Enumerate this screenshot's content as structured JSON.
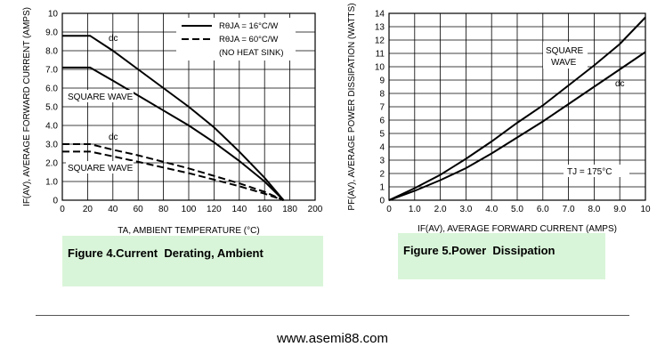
{
  "chart_data": [
    {
      "type": "line",
      "figure_caption": "Figure 4.Current  Derating, Ambient",
      "xlabel": "TA, AMBIENT TEMPERATURE (°C)",
      "ylabel": "IF(AV), AVERAGE FORWARD CURRENT (AMPS)",
      "xlim": [
        0,
        200
      ],
      "ylim": [
        0,
        10
      ],
      "xticks": [
        "0",
        "20",
        "40",
        "60",
        "80",
        "100",
        "120",
        "140",
        "160",
        "180",
        "200"
      ],
      "yticks": [
        "0",
        "1.0",
        "2.0",
        "3.0",
        "4.0",
        "5.0",
        "6.0",
        "7.0",
        "8.0",
        "9.0",
        "10"
      ],
      "grid": true,
      "legend": {
        "placement": "top-right",
        "entries": [
          {
            "text": "RθJA = 16°C/W",
            "style": "solid"
          },
          {
            "text": "RθJA = 60°C/W",
            "style": "dashed"
          },
          {
            "text": "(NO HEAT SINK)",
            "style": "none"
          }
        ]
      },
      "annotations": [
        "dc",
        "SQUARE WAVE",
        "dc",
        "SQUARE WAVE"
      ],
      "series": [
        {
          "style": "solid",
          "points": [
            [
              0,
              8.8
            ],
            [
              22,
              8.8
            ],
            [
              40,
              8.0
            ],
            [
              60,
              7.0
            ],
            [
              80,
              6.0
            ],
            [
              100,
              5.0
            ],
            [
              120,
              3.9
            ],
            [
              140,
              2.6
            ],
            [
              160,
              1.2
            ],
            [
              175,
              0
            ]
          ]
        },
        {
          "style": "solid",
          "points": [
            [
              0,
              7.1
            ],
            [
              22,
              7.1
            ],
            [
              40,
              6.4
            ],
            [
              60,
              5.6
            ],
            [
              80,
              4.8
            ],
            [
              100,
              4.0
            ],
            [
              120,
              3.1
            ],
            [
              140,
              2.1
            ],
            [
              160,
              1.0
            ],
            [
              175,
              0
            ]
          ]
        },
        {
          "style": "dashed",
          "points": [
            [
              0,
              3.0
            ],
            [
              22,
              3.0
            ],
            [
              40,
              2.7
            ],
            [
              60,
              2.4
            ],
            [
              80,
              2.05
            ],
            [
              100,
              1.7
            ],
            [
              120,
              1.3
            ],
            [
              140,
              0.9
            ],
            [
              160,
              0.45
            ],
            [
              175,
              0
            ]
          ]
        },
        {
          "style": "dashed",
          "points": [
            [
              0,
              2.6
            ],
            [
              22,
              2.6
            ],
            [
              40,
              2.35
            ],
            [
              60,
              2.05
            ],
            [
              80,
              1.75
            ],
            [
              100,
              1.45
            ],
            [
              120,
              1.1
            ],
            [
              140,
              0.75
            ],
            [
              160,
              0.35
            ],
            [
              175,
              0
            ]
          ]
        }
      ]
    },
    {
      "type": "line",
      "figure_caption": "Figure 5.Power  Dissipation",
      "xlabel": "IF(AV), AVERAGE FORWARD CURRENT (AMPS)",
      "ylabel": "PF(AV), AVERAGE POWER DISSIPATION (WATTS)",
      "xlim": [
        0,
        10
      ],
      "ylim": [
        0,
        14
      ],
      "xticks": [
        "0",
        "1.0",
        "2.0",
        "3.0",
        "4.0",
        "5.0",
        "6.0",
        "7.0",
        "8.0",
        "9.0",
        "10"
      ],
      "yticks": [
        "0",
        "1",
        "2",
        "3",
        "4",
        "5",
        "6",
        "7",
        "8",
        "9",
        "10",
        "11",
        "12",
        "13",
        "14"
      ],
      "grid": true,
      "annotations": [
        "SQUARE",
        "WAVE",
        "dc",
        "TJ = 175°C"
      ],
      "series": [
        {
          "style": "solid",
          "points": [
            [
              0,
              0
            ],
            [
              1,
              0.9
            ],
            [
              2,
              1.9
            ],
            [
              3,
              3.1
            ],
            [
              4,
              4.4
            ],
            [
              5,
              5.8
            ],
            [
              6,
              7.1
            ],
            [
              7,
              8.6
            ],
            [
              8,
              10.1
            ],
            [
              9,
              11.7
            ],
            [
              10,
              13.7
            ]
          ]
        },
        {
          "style": "solid",
          "points": [
            [
              0,
              0
            ],
            [
              1,
              0.7
            ],
            [
              2,
              1.5
            ],
            [
              3,
              2.4
            ],
            [
              4,
              3.5
            ],
            [
              5,
              4.7
            ],
            [
              6,
              5.9
            ],
            [
              7,
              7.2
            ],
            [
              8,
              8.5
            ],
            [
              9,
              9.8
            ],
            [
              10,
              11.1
            ]
          ]
        }
      ]
    }
  ],
  "footer": {
    "website": "www.asemi88.com"
  }
}
